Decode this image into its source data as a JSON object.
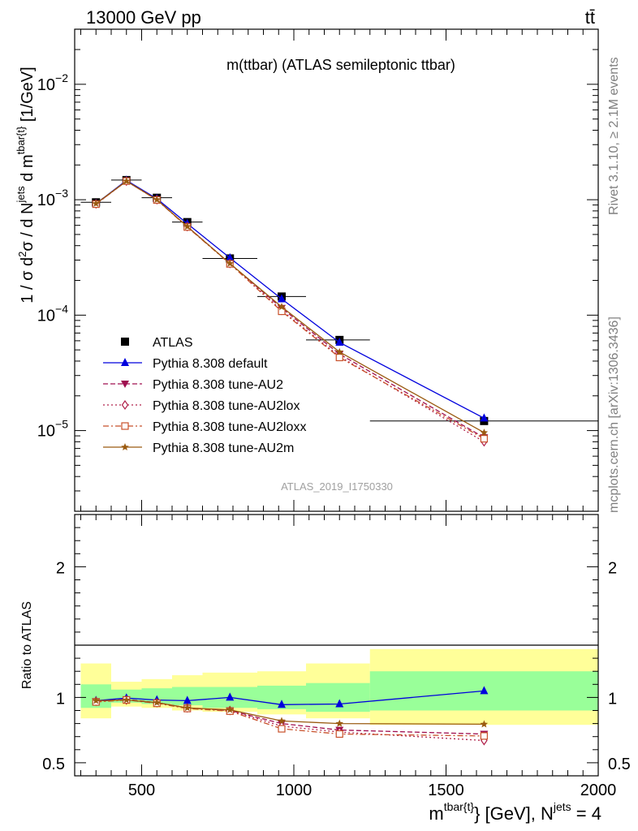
{
  "header": {
    "left": "13000 GeV pp",
    "right": "tt̄"
  },
  "side_labels": {
    "rivet": "Rivet 3.1.10, ≥ 2.1M events",
    "mcplots": "mcplots.cern.ch [arXiv:1306.3436]"
  },
  "chart_data": [
    {
      "type": "scatter",
      "title": "m(ttbar) (ATLAS semileptonic ttbar)",
      "watermark": "ATLAS_2019_I1750330",
      "ylabel": "1 / σ d²σ / d N^jets d m^tbar{t} [1/GeV]",
      "yscale": "log",
      "xlim": [
        280,
        2000
      ],
      "ylim": [
        2e-06,
        0.03
      ],
      "ytick_labels": [
        "10^-5",
        "10^-4",
        "10^-3",
        "10^-2"
      ],
      "x": [
        350,
        450,
        550,
        650,
        790,
        960,
        1150,
        1625
      ],
      "x_bins": [
        [
          300,
          400
        ],
        [
          400,
          500
        ],
        [
          500,
          600
        ],
        [
          600,
          700
        ],
        [
          700,
          880
        ],
        [
          880,
          1040
        ],
        [
          1040,
          1250
        ],
        [
          1250,
          2000
        ]
      ],
      "legend_position": "lower-left",
      "series": [
        {
          "name": "ATLAS",
          "marker": "square",
          "color": "#000000",
          "values": [
            0.00095,
            0.00148,
            0.00104,
            0.00064,
            0.00031,
            0.000145,
            6.1e-05,
            1.21e-05
          ]
        },
        {
          "name": "Pythia 8.308 default",
          "marker": "triangle",
          "color": "#0000dd",
          "line": "solid",
          "values": [
            0.000925,
            0.00147,
            0.00102,
            0.00062,
            0.000313,
            0.000138,
            5.8e-05,
            1.28e-05
          ]
        },
        {
          "name": "Pythia 8.308 tune-AU2",
          "marker": "triangle-down",
          "color": "#a01050",
          "line": "dashed",
          "values": [
            0.00092,
            0.00145,
            0.001,
            0.000585,
            0.00028,
            0.000115,
            4.6e-05,
            8.7e-06
          ]
        },
        {
          "name": "Pythia 8.308 tune-AU2lox",
          "marker": "diamond-open",
          "color": "#b0204a",
          "line": "dotted",
          "values": [
            0.00092,
            0.00145,
            0.001,
            0.000585,
            0.00028,
            0.00011,
            4.4e-05,
            8e-06
          ]
        },
        {
          "name": "Pythia 8.308 tune-AU2loxx",
          "marker": "square-open",
          "color": "#c8502a",
          "line": "dashdot",
          "values": [
            0.000915,
            0.00145,
            0.000995,
            0.00058,
            0.000278,
            0.000108,
            4.3e-05,
            8.5e-06
          ]
        },
        {
          "name": "Pythia 8.308 tune-AU2m",
          "marker": "star",
          "color": "#9a5a10",
          "line": "solid",
          "values": [
            0.000925,
            0.00145,
            0.001,
            0.000585,
            0.00028,
            0.000118,
            4.8e-05,
            9.6e-06
          ]
        }
      ]
    },
    {
      "type": "scatter",
      "ylabel": "Ratio to ATLAS",
      "xlabel": "m^tbar{t} [GeV], N^jets = 4",
      "xlim": [
        280,
        2000
      ],
      "ylim": [
        0.4,
        2.4
      ],
      "ytick_labels": [
        "0.5",
        "1",
        "2"
      ],
      "xtick_labels": [
        "500",
        "1000",
        "1500",
        "2000"
      ],
      "x": [
        350,
        450,
        550,
        650,
        790,
        960,
        1150,
        1625
      ],
      "bands": {
        "x_bins": [
          [
            300,
            400
          ],
          [
            400,
            500
          ],
          [
            500,
            600
          ],
          [
            600,
            700
          ],
          [
            700,
            880
          ],
          [
            880,
            1040
          ],
          [
            1040,
            1250
          ],
          [
            1250,
            2000
          ]
        ],
        "inner_lo": [
          0.92,
          0.96,
          0.95,
          0.94,
          0.92,
          0.91,
          0.89,
          0.9
        ],
        "inner_hi": [
          1.1,
          1.06,
          1.07,
          1.08,
          1.08,
          1.09,
          1.11,
          1.2
        ],
        "outer_lo": [
          0.84,
          0.93,
          0.92,
          0.9,
          0.89,
          0.87,
          0.84,
          0.79
        ],
        "outer_hi": [
          1.26,
          1.12,
          1.14,
          1.17,
          1.19,
          1.2,
          1.26,
          1.37
        ]
      },
      "series": [
        {
          "name": "Pythia 8.308 default",
          "values": [
            0.975,
            0.995,
            0.98,
            0.975,
            1.0,
            0.945,
            0.95,
            1.05
          ]
        },
        {
          "name": "Pythia 8.308 tune-AU2",
          "values": [
            0.97,
            0.985,
            0.96,
            0.92,
            0.9,
            0.8,
            0.75,
            0.72
          ]
        },
        {
          "name": "Pythia 8.308 tune-AU2lox",
          "values": [
            0.97,
            0.98,
            0.96,
            0.92,
            0.9,
            0.78,
            0.735,
            0.67
          ]
        },
        {
          "name": "Pythia 8.308 tune-AU2loxx",
          "values": [
            0.965,
            0.98,
            0.955,
            0.915,
            0.895,
            0.76,
            0.72,
            0.705
          ]
        },
        {
          "name": "Pythia 8.308 tune-AU2m",
          "values": [
            0.975,
            0.98,
            0.96,
            0.92,
            0.905,
            0.82,
            0.8,
            0.795
          ]
        }
      ]
    }
  ]
}
